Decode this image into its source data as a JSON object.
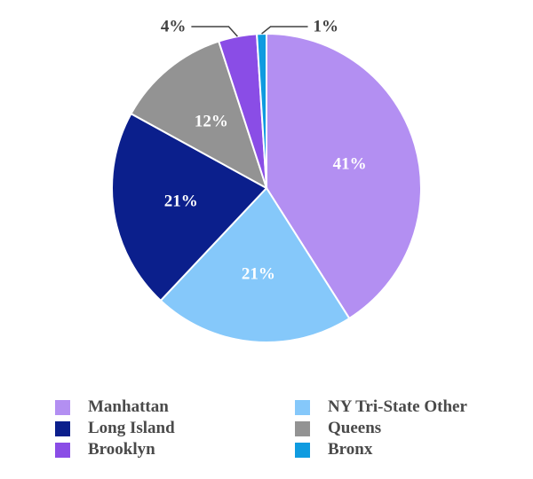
{
  "chart_data": {
    "type": "pie",
    "title": "",
    "slices": [
      {
        "name": "Manhattan",
        "value": 41,
        "label": "41%",
        "color": "#b38ff2"
      },
      {
        "name": "NY Tri-State Other",
        "value": 21,
        "label": "21%",
        "color": "#85c8fa"
      },
      {
        "name": "Long Island",
        "value": 21,
        "label": "21%",
        "color": "#0b1f8c"
      },
      {
        "name": "Queens",
        "value": 12,
        "label": "12%",
        "color": "#939393"
      },
      {
        "name": "Brooklyn",
        "value": 4,
        "label": "4%",
        "color": "#8a4de6"
      },
      {
        "name": "Bronx",
        "value": 1,
        "label": "1%",
        "color": "#0f9be0"
      }
    ],
    "legend_position": "bottom",
    "legend_order": [
      "Manhattan",
      "NY Tri-State Other",
      "Long Island",
      "Queens",
      "Brooklyn",
      "Bronx"
    ]
  }
}
